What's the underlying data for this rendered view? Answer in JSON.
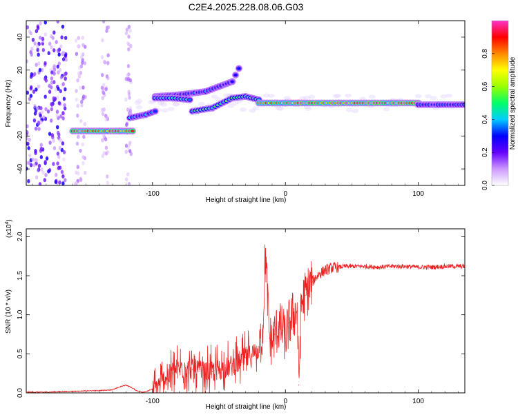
{
  "chart_data": [
    {
      "type": "heatmap",
      "title": "C2E4.2025.228.08.06.G03",
      "xlabel": "Height of straight line (km)",
      "ylabel": "Frequency (Hz)",
      "xlim": [
        -195,
        135
      ],
      "ylim": [
        -50,
        50
      ],
      "x_ticks": [
        -100,
        0,
        100
      ],
      "y_ticks": [
        -40,
        -20,
        0,
        20,
        40
      ],
      "x_tick_labels": [
        "-100",
        "0",
        "100"
      ],
      "y_tick_labels": [
        "-40",
        "-20",
        "0",
        "20",
        "40"
      ],
      "colorbar": {
        "label": "Normalized spectral amplitude",
        "range": [
          0,
          1
        ],
        "ticks": [
          0.0,
          0.2,
          0.4,
          0.6,
          0.8
        ],
        "tick_labels": [
          "0.0",
          "0.2",
          "0.4",
          "0.6",
          "0.8"
        ],
        "colors": [
          "#ffffff",
          "#cc99ff",
          "#6600ff",
          "#0000ff",
          "#00ccff",
          "#00ff66",
          "#99ff00",
          "#ffff00",
          "#ff8800",
          "#ff0000",
          "#ff33cc"
        ]
      },
      "tracks": [
        {
          "x": [
            -160,
            -140,
            -125,
            -115
          ],
          "y": [
            -17,
            -17,
            -17,
            -17
          ],
          "amplitude": 0.9
        },
        {
          "x": [
            -117,
            -105,
            -98
          ],
          "y": [
            -9,
            -7,
            -5
          ],
          "amplitude": 0.4
        },
        {
          "x": [
            -98,
            -80,
            -60,
            -50,
            -40,
            -35
          ],
          "y": [
            4,
            5,
            7,
            10,
            13,
            21
          ],
          "amplitude": 0.35
        },
        {
          "x": [
            -98,
            -85,
            -72
          ],
          "y": [
            3,
            3,
            2
          ],
          "amplitude": 0.45
        },
        {
          "x": [
            -70,
            -55,
            -40,
            -30,
            -20
          ],
          "y": [
            -5,
            -3,
            3,
            4,
            2
          ],
          "amplitude": 0.5
        },
        {
          "x": [
            -20,
            0,
            10
          ],
          "y": [
            0,
            0,
            0
          ],
          "amplitude": 0.9
        },
        {
          "x": [
            10,
            40,
            80,
            100
          ],
          "y": [
            0,
            0,
            0,
            0
          ],
          "amplitude": 0.95
        },
        {
          "x": [
            100,
            115,
            135
          ],
          "y": [
            -1,
            -1,
            -1
          ],
          "amplitude": 0.35
        }
      ]
    },
    {
      "type": "line",
      "xlabel": "Height of straight line (km)",
      "ylabel": "SNR (10 * v/v)",
      "y_multiplier": "(x10",
      "y_multiplier_exp": "4",
      "xlim": [
        -195,
        135
      ],
      "ylim": [
        0,
        2.1
      ],
      "x_ticks": [
        -100,
        0,
        100
      ],
      "y_ticks": [
        0.0,
        0.5,
        1.0,
        1.5,
        2.0
      ],
      "x_tick_labels": [
        "-100",
        "0",
        "100"
      ],
      "y_tick_labels": [
        "0.0",
        "0.5",
        "1.0",
        "1.5",
        "2.0"
      ],
      "color": "#ee2222",
      "series": [
        {
          "x": [
            -195,
            -180,
            -160,
            -140,
            -130,
            -124,
            -120,
            -116,
            -112,
            -108,
            -104,
            -100,
            -95,
            -90,
            -85,
            -80,
            -75,
            -70,
            -65,
            -60,
            -55,
            -50,
            -45,
            -40,
            -35,
            -30,
            -25,
            -20,
            -17,
            -15,
            -12,
            -10,
            -8,
            -5,
            -2,
            0,
            3,
            6,
            9,
            10,
            12,
            15,
            18,
            20,
            23,
            26,
            30,
            35,
            40,
            45,
            50,
            60,
            70,
            80,
            90,
            100,
            110,
            120,
            130,
            135
          ],
          "y": [
            0.01,
            0.01,
            0.02,
            0.03,
            0.04,
            0.08,
            0.1,
            0.07,
            0.03,
            0.01,
            0.02,
            0.05,
            0.1,
            0.2,
            0.25,
            0.3,
            0.32,
            0.3,
            0.28,
            0.26,
            0.27,
            0.3,
            0.32,
            0.35,
            0.4,
            0.45,
            0.5,
            0.55,
            0.8,
            1.8,
            0.7,
            0.65,
            0.75,
            0.85,
            0.8,
            0.7,
            0.9,
            1.0,
            1.05,
            0.1,
            1.15,
            1.25,
            1.35,
            1.42,
            1.48,
            1.53,
            1.57,
            1.6,
            1.61,
            1.62,
            1.62,
            1.62,
            1.61,
            1.62,
            1.62,
            1.61,
            1.61,
            1.62,
            1.62,
            1.62
          ]
        }
      ]
    }
  ]
}
